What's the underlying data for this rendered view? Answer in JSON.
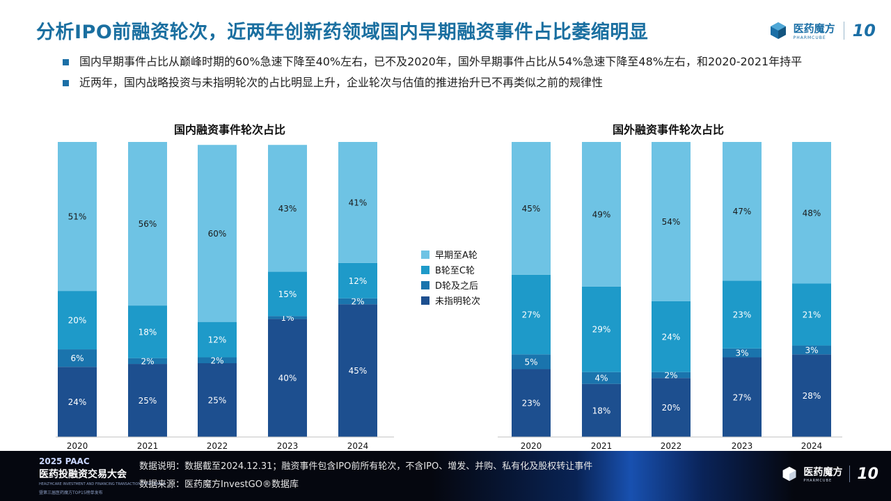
{
  "header": {
    "title": "分析IPO前融资轮次，近两年创新药领域国内早期融资事件占比萎缩明显",
    "logo_cn": "医药魔方",
    "logo_en": "PHARMCUBE",
    "logo_ten": "10"
  },
  "bullets": [
    "国内早期事件占比从巅峰时期的60%急速下降至40%左右，已不及2020年，国外早期事件占比从54%急速下降至48%左右，和2020-2021年持平",
    "近两年，国内战略投资与未指明轮次的占比明显上升，企业轮次与估值的推进抬升已不再类似之前的规律性"
  ],
  "colors": {
    "early": "#6ec3e4",
    "bc": "#1e9ac9",
    "d": "#1a74ad",
    "unspecified": "#1d4f8f"
  },
  "chart_data": [
    {
      "type": "bar",
      "stacked": true,
      "title": "国内融资事件轮次占比",
      "categories": [
        "2020",
        "2021",
        "2022",
        "2023",
        "2024"
      ],
      "series": [
        {
          "name": "未指明轮次",
          "values": [
            24,
            25,
            25,
            40,
            45
          ]
        },
        {
          "name": "D轮及之后",
          "values": [
            6,
            2,
            2,
            1,
            2
          ]
        },
        {
          "name": "B轮至C轮",
          "values": [
            20,
            18,
            12,
            15,
            12
          ]
        },
        {
          "name": "早期至A轮",
          "values": [
            51,
            56,
            60,
            43,
            41
          ]
        }
      ],
      "value_suffix": "%",
      "ylim": [
        0,
        100
      ]
    },
    {
      "type": "bar",
      "stacked": true,
      "title": "国外融资事件轮次占比",
      "categories": [
        "2020",
        "2021",
        "2022",
        "2023",
        "2024"
      ],
      "series": [
        {
          "name": "未指明轮次",
          "values": [
            23,
            18,
            20,
            27,
            28
          ]
        },
        {
          "name": "D轮及之后",
          "values": [
            5,
            4,
            2,
            3,
            3
          ]
        },
        {
          "name": "B轮至C轮",
          "values": [
            27,
            29,
            24,
            23,
            21
          ]
        },
        {
          "name": "早期至A轮",
          "values": [
            45,
            49,
            54,
            47,
            48
          ]
        }
      ],
      "value_suffix": "%",
      "ylim": [
        0,
        100
      ]
    }
  ],
  "legend": {
    "placement": "center",
    "items": [
      "早期至A轮",
      "B轮至C轮",
      "D轮及之后",
      "未指明轮次"
    ]
  },
  "footer": {
    "event_line1": "2025 PAAC",
    "event_line2": "医药投融资交易大会",
    "event_line3": "HEALTHCARE INVESTMENT AND FINANCING TRANSACTION CONFERENCE",
    "event_line4": "暨第三届医药魔方TOP15榜单发布",
    "note": "数据说明：数据截至2024.12.31；融资事件包含IPO前所有轮次，不含IPO、增发、并购、私有化及股权转让事件",
    "source": "数据来源：医药魔方InvestGO®数据库",
    "logo_cn": "医药魔方",
    "logo_en": "PHARMCUBE",
    "logo_ten": "10"
  }
}
